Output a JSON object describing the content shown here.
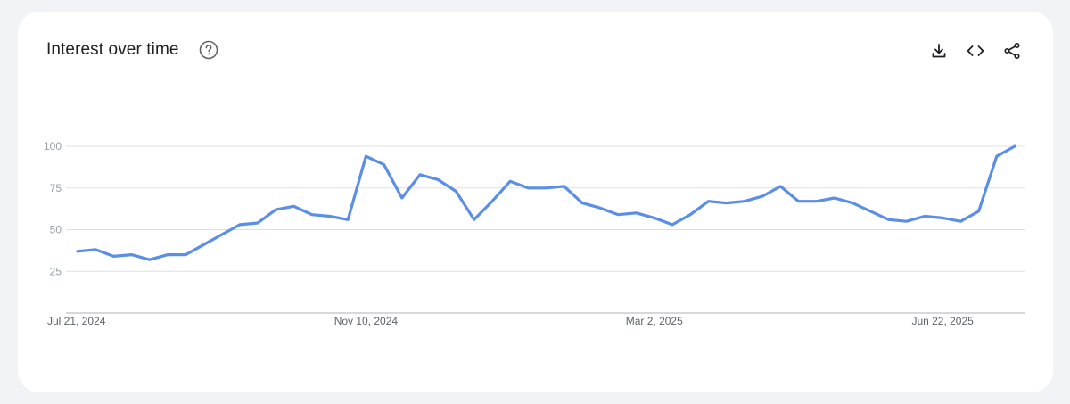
{
  "header": {
    "title": "Interest over time",
    "help_icon": "help-circle-icon",
    "actions": [
      {
        "name": "download-button",
        "icon": "download-icon"
      },
      {
        "name": "embed-button",
        "icon": "code-icon"
      },
      {
        "name": "share-button",
        "icon": "share-icon"
      }
    ]
  },
  "colors": {
    "line": "#5b8ee6",
    "grid": "#e0e0e0",
    "axis": "#bdc1c6"
  },
  "chart_data": {
    "type": "line",
    "title": "Interest over time",
    "xlabel": "",
    "ylabel": "",
    "ylim": [
      0,
      100
    ],
    "y_ticks": [
      25,
      50,
      75,
      100
    ],
    "x_tick_labels": [
      {
        "label": "Jul 21, 2024",
        "index": 0
      },
      {
        "label": "Nov 10, 2024",
        "index": 16
      },
      {
        "label": "Mar 2, 2025",
        "index": 32
      },
      {
        "label": "Jun 22, 2025",
        "index": 48
      }
    ],
    "grid": true,
    "series": [
      {
        "values": [
          37,
          38,
          34,
          35,
          32,
          35,
          35,
          41,
          47,
          53,
          54,
          62,
          64,
          59,
          58,
          56,
          94,
          89,
          69,
          83,
          80,
          73,
          56,
          67,
          79,
          75,
          75,
          76,
          66,
          63,
          59,
          60,
          57,
          53,
          59,
          67,
          66,
          67,
          70,
          76,
          67,
          67,
          69,
          66,
          61,
          56,
          55,
          58,
          57,
          55,
          61,
          94,
          100
        ]
      }
    ]
  }
}
